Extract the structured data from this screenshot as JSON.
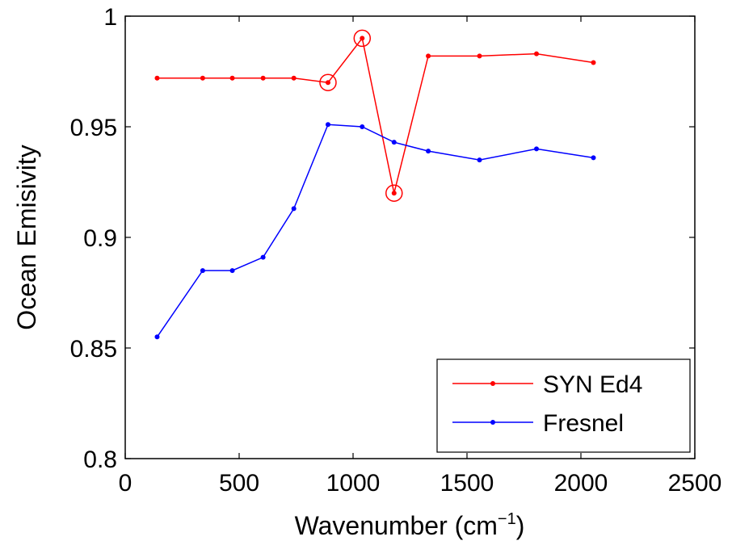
{
  "chart_data": {
    "type": "line",
    "xlabel": "Wavenumber (cm",
    "xlabel_superscript": "−1",
    "xlabel_suffix": ")",
    "ylabel": "Ocean Emisivity",
    "xlim": [
      0,
      2500
    ],
    "ylim": [
      0.8,
      1.0
    ],
    "xticks": [
      0,
      500,
      1000,
      1500,
      2000,
      2500
    ],
    "xtick_labels": [
      "0",
      "500",
      "1000",
      "1500",
      "2000",
      "2500"
    ],
    "yticks": [
      0.8,
      0.85,
      0.9,
      0.95,
      1.0
    ],
    "ytick_labels": [
      "0.8",
      "0.85",
      "0.9",
      "0.95",
      "1"
    ],
    "grid": false,
    "legend_position": "bottom-right",
    "series": [
      {
        "name": "SYN Ed4",
        "color": "#ff0000",
        "x": [
          140,
          340,
          470,
          605,
          740,
          890,
          1040,
          1180,
          1330,
          1555,
          1805,
          2055
        ],
        "y": [
          0.972,
          0.972,
          0.972,
          0.972,
          0.972,
          0.97,
          0.99,
          0.92,
          0.982,
          0.982,
          0.983,
          0.979
        ],
        "circled_points": [
          5,
          6,
          7
        ]
      },
      {
        "name": "Fresnel",
        "color": "#0000ff",
        "x": [
          140,
          340,
          470,
          605,
          740,
          890,
          1040,
          1180,
          1330,
          1555,
          1805,
          2055
        ],
        "y": [
          0.855,
          0.885,
          0.885,
          0.891,
          0.913,
          0.951,
          0.95,
          0.943,
          0.939,
          0.935,
          0.94,
          0.936
        ]
      }
    ]
  }
}
